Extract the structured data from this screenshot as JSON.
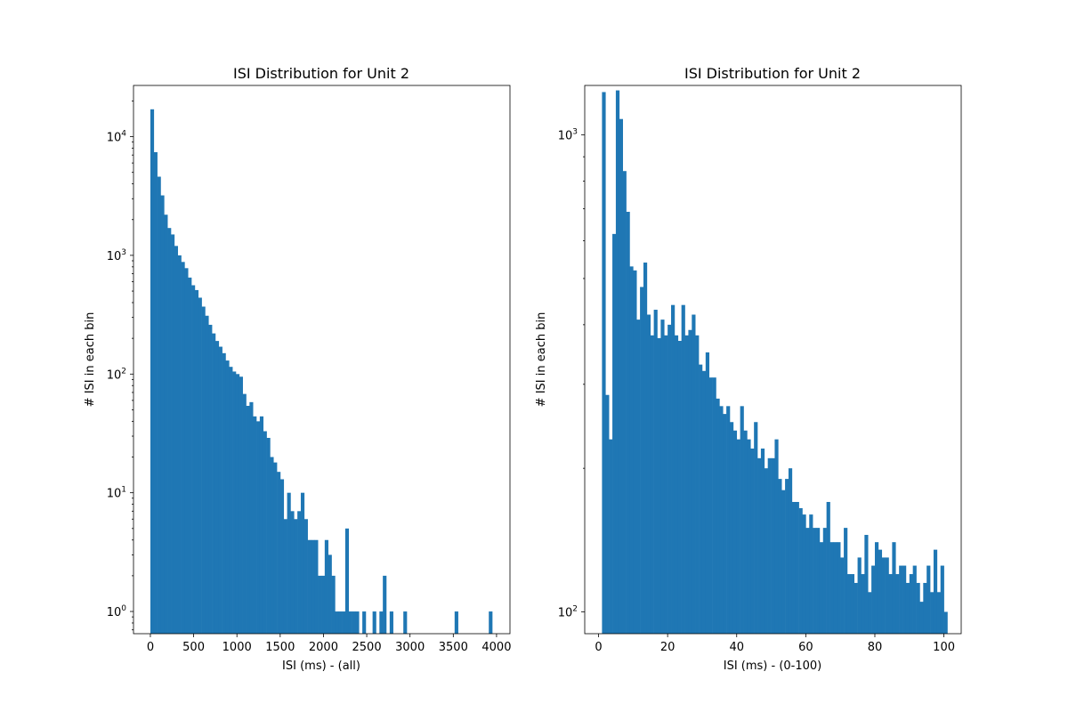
{
  "chart_data": [
    {
      "type": "bar",
      "title": "ISI Distribution for Unit 2",
      "xlabel": "ISI (ms) - (all)",
      "ylabel": "# ISI in each bin",
      "yscale": "log",
      "xlim": [
        -195,
        4155
      ],
      "ylim": [
        0.65,
        27000
      ],
      "color": "#1f77b4",
      "bin_start": 0,
      "bin_width": 39.5,
      "values": [
        17000,
        7400,
        4600,
        3200,
        2200,
        1700,
        1500,
        1200,
        1000,
        880,
        780,
        650,
        560,
        510,
        440,
        370,
        310,
        260,
        220,
        190,
        170,
        150,
        130,
        115,
        105,
        100,
        95,
        68,
        54,
        58,
        44,
        40,
        44,
        33,
        29,
        20,
        18,
        15,
        13,
        6,
        10,
        7,
        6,
        7,
        10,
        6,
        4,
        4,
        4,
        2,
        2,
        4,
        3,
        2,
        1,
        1,
        1,
        5,
        1,
        1,
        1,
        0,
        1,
        0,
        0,
        1,
        0,
        1,
        2,
        0,
        1,
        0,
        0,
        0,
        1,
        0,
        0,
        0,
        0,
        0,
        0,
        0,
        0,
        0,
        0,
        0,
        0,
        0,
        0,
        1,
        0,
        0,
        0,
        0,
        0,
        0,
        0,
        0,
        0,
        1
      ],
      "xticks": [
        0,
        500,
        1000,
        1500,
        2000,
        2500,
        3000,
        3500,
        4000
      ],
      "yticks": [
        {
          "value": 1,
          "label_base": "10",
          "label_exp": "0"
        },
        {
          "value": 10,
          "label_base": "10",
          "label_exp": "1"
        },
        {
          "value": 100,
          "label_base": "10",
          "label_exp": "2"
        },
        {
          "value": 1000,
          "label_base": "10",
          "label_exp": "3"
        },
        {
          "value": 10000,
          "label_base": "10",
          "label_exp": "4"
        }
      ],
      "grid": false
    },
    {
      "type": "bar",
      "title": "ISI Distribution for Unit 2",
      "xlabel": "ISI (ms) - (0-100)",
      "ylabel": "# ISI in each bin",
      "yscale": "log",
      "xlim": [
        -4,
        105
      ],
      "ylim": [
        90,
        1270
      ],
      "color": "#1f77b4",
      "bin_start": 1,
      "bin_width": 1,
      "values": [
        1230,
        285,
        230,
        620,
        1240,
        1080,
        840,
        690,
        530,
        520,
        410,
        480,
        540,
        420,
        380,
        430,
        375,
        410,
        380,
        400,
        440,
        380,
        370,
        440,
        380,
        390,
        420,
        380,
        330,
        320,
        350,
        310,
        310,
        280,
        270,
        260,
        270,
        250,
        240,
        230,
        270,
        240,
        230,
        220,
        250,
        210,
        220,
        200,
        210,
        210,
        230,
        190,
        180,
        190,
        200,
        170,
        170,
        165,
        160,
        150,
        160,
        150,
        150,
        140,
        150,
        170,
        140,
        140,
        140,
        130,
        150,
        120,
        120,
        115,
        130,
        120,
        145,
        110,
        125,
        140,
        135,
        130,
        130,
        120,
        140,
        120,
        125,
        125,
        115,
        120,
        125,
        115,
        105,
        115,
        125,
        110,
        135,
        110,
        125,
        100
      ],
      "xticks": [
        0,
        20,
        40,
        60,
        80,
        100
      ],
      "yticks": [
        {
          "value": 100,
          "label_base": "10",
          "label_exp": "2"
        },
        {
          "value": 1000,
          "label_base": "10",
          "label_exp": "3"
        }
      ],
      "minor_yticks": [
        200,
        300,
        400,
        500,
        600,
        700,
        800,
        900
      ],
      "grid": false
    }
  ]
}
